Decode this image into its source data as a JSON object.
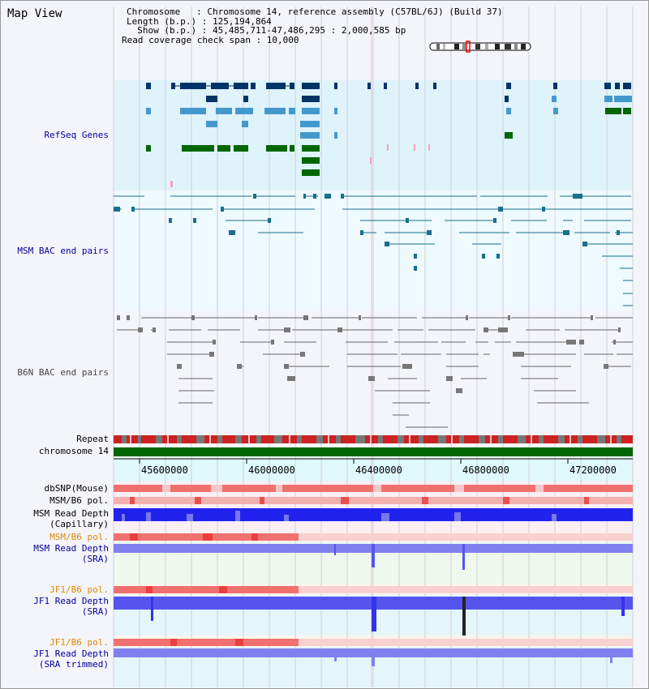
{
  "title": "Map View",
  "header": {
    "chromosome_line": "Chromosome   : Chromosome 14, reference assembly (C57BL/6J) (Build 37)",
    "length_line": "Length (b.p.) : 125,194,864",
    "show_line": "  Show (b.p.) : 45,485,711-47,486,295 : 2,000,585 bp",
    "coverage_line": "Read coverage check span : 10,000"
  },
  "tracks": {
    "refseq": "RefSeq Genes",
    "msm_bac": "MSM BAC end pairs",
    "b6n_bac": "B6N BAC end pairs",
    "repeat": "Repeat",
    "chromosome": "chromosome 14",
    "dbsnp": "dbSNP(Mouse)",
    "msm_b6_pol_1": "MSM/B6 pol.",
    "msm_depth_cap_1": "MSM Read Depth",
    "msm_depth_cap_2": "(Capillary)",
    "msm_b6_pol_2": "MSM/B6 pol.",
    "msm_depth_sra_1": "MSM Read Depth",
    "msm_depth_sra_2": "(SRA)",
    "jf1_b6_pol_1": "JF1/B6 pol.",
    "jf1_depth_sra_1": "JF1 Read Depth",
    "jf1_depth_sra_2": "(SRA)",
    "jf1_b6_pol_2": "JF1/B6 pol.",
    "jf1_depth_trim_1": "JF1 Read Depth",
    "jf1_depth_trim_2": "(SRA trimmed)"
  },
  "axis": {
    "ticks": [
      "45600000",
      "46000000",
      "46400000",
      "46800000",
      "47200000"
    ]
  },
  "colors": {
    "refseq_bg": "#dff3fb",
    "msm_bac_bg": "#eefafd",
    "gene_dark": "#003366",
    "gene_mid": "#4499cc",
    "gene_green": "#006600",
    "msm_line": "#1a6f8f",
    "b6n_line": "#666666",
    "repeat_red": "#cc2222",
    "chrom_green": "#006600",
    "depth_blue": "#2222ee",
    "depth_light": "#7777ee",
    "label_navy": "#000099",
    "label_orange": "#e08800"
  }
}
